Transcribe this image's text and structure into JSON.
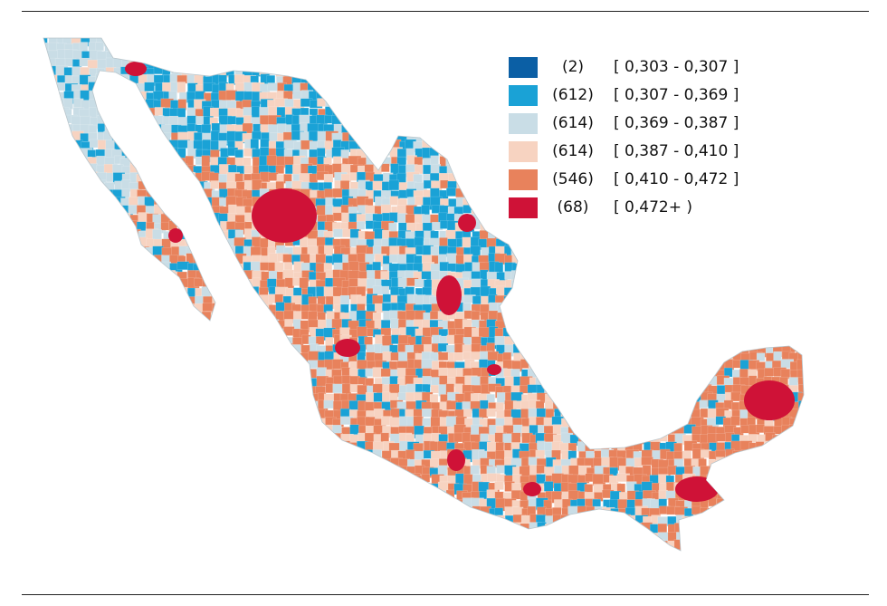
{
  "legend": {
    "items": [
      {
        "count": "(2)",
        "range": "[ 0,303 - 0,307 ]",
        "color": "#0b5fa5"
      },
      {
        "count": "(612)",
        "range": "[ 0,307 - 0,369 ]",
        "color": "#1aa2d6"
      },
      {
        "count": "(614)",
        "range": "[ 0,369 - 0,387 ]",
        "color": "#c9dde6"
      },
      {
        "count": "(614)",
        "range": "[ 0,387 - 0,410 ]",
        "color": "#f7d3c1"
      },
      {
        "count": "(546)",
        "range": "[ 0,410 - 0,472 ]",
        "color": "#e8825c"
      },
      {
        "count": "(68)",
        "range": "[ 0,472+ )",
        "color": "#cf1237"
      }
    ]
  },
  "map": {
    "region": "Mexico",
    "unit": "municipalities",
    "classes": [
      "0,303 - 0,307",
      "0,307 - 0,369",
      "0,369 - 0,387",
      "0,387 - 0,410",
      "0,410 - 0,472",
      "0,472+"
    ]
  }
}
